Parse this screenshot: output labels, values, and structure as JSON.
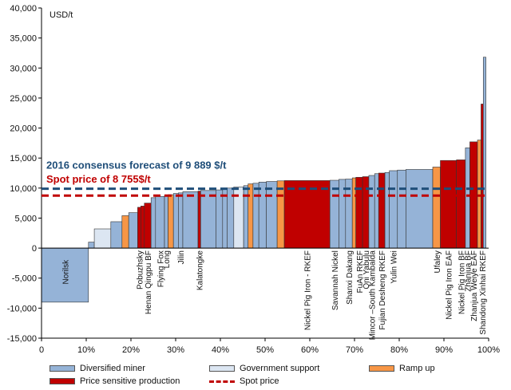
{
  "chart_data": {
    "type": "bar",
    "subtype": "cost-curve",
    "ylabel": "USD/t",
    "xlim": [
      0,
      100
    ],
    "ylim": [
      -15000,
      40000
    ],
    "x_ticks": [
      "0",
      "10%",
      "20%",
      "30%",
      "40%",
      "50%",
      "60%",
      "70%",
      "80%",
      "90%",
      "100%"
    ],
    "y_ticks": [
      "-15,000",
      "-10,000",
      "-5,000",
      "0",
      "5,000",
      "10,000",
      "15,000",
      "20,000",
      "25,000",
      "30,000",
      "35,000",
      "40,000"
    ],
    "grid": false,
    "legend_position": "bottom",
    "categories": {
      "diversified": {
        "label": "Diversified miner",
        "color": "#95b3d7"
      },
      "government": {
        "label": "Government support",
        "color": "#dce6f2"
      },
      "rampup": {
        "label": "Ramp up",
        "color": "#f79646"
      },
      "price": {
        "label": "Price sensitive production",
        "color": "#c00000"
      }
    },
    "bars": [
      {
        "x0": 0.0,
        "x1": 10.5,
        "value": -9000,
        "cat": "diversified",
        "label": "Norilsk"
      },
      {
        "x0": 10.5,
        "x1": 11.8,
        "value": 1000,
        "cat": "diversified"
      },
      {
        "x0": 11.8,
        "x1": 15.5,
        "value": 3200,
        "cat": "government"
      },
      {
        "x0": 15.5,
        "x1": 18.0,
        "value": 4400,
        "cat": "diversified"
      },
      {
        "x0": 18.0,
        "x1": 19.5,
        "value": 5400,
        "cat": "rampup"
      },
      {
        "x0": 19.5,
        "x1": 21.5,
        "value": 5900,
        "cat": "diversified"
      },
      {
        "x0": 21.5,
        "x1": 22.2,
        "value": 6800,
        "cat": "price",
        "label": "Pobuzhsky"
      },
      {
        "x0": 22.2,
        "x1": 23.0,
        "value": 7000,
        "cat": "price"
      },
      {
        "x0": 23.0,
        "x1": 24.5,
        "value": 7500,
        "cat": "price",
        "label": "Henan Qingpu BF"
      },
      {
        "x0": 24.5,
        "x1": 25.5,
        "value": 8400,
        "cat": "diversified"
      },
      {
        "x0": 25.5,
        "x1": 27.5,
        "value": 8600,
        "cat": "diversified",
        "label": "Flying Fox"
      },
      {
        "x0": 27.5,
        "x1": 28.3,
        "value": 8800,
        "cat": "diversified",
        "label": "Long"
      },
      {
        "x0": 28.3,
        "x1": 29.5,
        "value": 8900,
        "cat": "rampup"
      },
      {
        "x0": 29.5,
        "x1": 30.6,
        "value": 9100,
        "cat": "diversified"
      },
      {
        "x0": 30.6,
        "x1": 31.6,
        "value": 9200,
        "cat": "diversified",
        "label": "Jilin"
      },
      {
        "x0": 31.6,
        "x1": 35.0,
        "value": 9400,
        "cat": "diversified"
      },
      {
        "x0": 35.0,
        "x1": 35.6,
        "value": 9500,
        "cat": "price",
        "label": "Kalatongke"
      },
      {
        "x0": 35.6,
        "x1": 39.0,
        "value": 9600,
        "cat": "diversified"
      },
      {
        "x0": 39.0,
        "x1": 40.5,
        "value": 9700,
        "cat": "diversified"
      },
      {
        "x0": 40.5,
        "x1": 41.5,
        "value": 9850,
        "cat": "diversified"
      },
      {
        "x0": 41.5,
        "x1": 43.0,
        "value": 10000,
        "cat": "diversified"
      },
      {
        "x0": 43.0,
        "x1": 45.2,
        "value": 10200,
        "cat": "government"
      },
      {
        "x0": 45.2,
        "x1": 46.2,
        "value": 10400,
        "cat": "diversified"
      },
      {
        "x0": 46.2,
        "x1": 47.3,
        "value": 10700,
        "cat": "rampup"
      },
      {
        "x0": 47.3,
        "x1": 48.6,
        "value": 10800,
        "cat": "diversified"
      },
      {
        "x0": 48.6,
        "x1": 50.3,
        "value": 11000,
        "cat": "diversified"
      },
      {
        "x0": 50.3,
        "x1": 52.7,
        "value": 11100,
        "cat": "diversified"
      },
      {
        "x0": 52.7,
        "x1": 54.3,
        "value": 11200,
        "cat": "rampup"
      },
      {
        "x0": 54.3,
        "x1": 64.5,
        "value": 11250,
        "cat": "price",
        "label": "Nickel Pig Iron - RKEF"
      },
      {
        "x0": 64.5,
        "x1": 66.5,
        "value": 11300,
        "cat": "diversified",
        "label": "Savannah Nickel"
      },
      {
        "x0": 66.5,
        "x1": 68.0,
        "value": 11450,
        "cat": "diversified"
      },
      {
        "x0": 68.0,
        "x1": 69.5,
        "value": 11500,
        "cat": "diversified",
        "label": "Shanxi Dakang"
      },
      {
        "x0": 69.5,
        "x1": 70.3,
        "value": 11700,
        "cat": "rampup"
      },
      {
        "x0": 70.3,
        "x1": 71.8,
        "value": 11800,
        "cat": "price",
        "label": "FuAn RKEF"
      },
      {
        "x0": 71.8,
        "x1": 73.2,
        "value": 11900,
        "cat": "price",
        "label": "Qni Yabulu"
      },
      {
        "x0": 73.2,
        "x1": 74.5,
        "value": 12100,
        "cat": "diversified",
        "label": "Mincor –South Kambalda"
      },
      {
        "x0": 74.5,
        "x1": 75.4,
        "value": 12400,
        "cat": "diversified"
      },
      {
        "x0": 75.4,
        "x1": 76.8,
        "value": 12500,
        "cat": "price",
        "label": "Fujian Desheng RKEF"
      },
      {
        "x0": 76.8,
        "x1": 77.8,
        "value": 12600,
        "cat": "diversified"
      },
      {
        "x0": 77.8,
        "x1": 79.6,
        "value": 12900,
        "cat": "diversified",
        "label": "Yulin Wei"
      },
      {
        "x0": 79.6,
        "x1": 81.5,
        "value": 13000,
        "cat": "diversified"
      },
      {
        "x0": 81.5,
        "x1": 87.5,
        "value": 13100,
        "cat": "diversified"
      },
      {
        "x0": 87.5,
        "x1": 89.2,
        "value": 13500,
        "cat": "rampup",
        "label": "Ufaley"
      },
      {
        "x0": 89.2,
        "x1": 92.8,
        "value": 14600,
        "cat": "price",
        "label": "Nickel Pig Iron EAF"
      },
      {
        "x0": 92.8,
        "x1": 94.8,
        "value": 14700,
        "cat": "price",
        "label": "Nickel Pig Iron BF"
      },
      {
        "x0": 94.8,
        "x1": 95.8,
        "value": 16700,
        "cat": "diversified",
        "label": "Zhanjua BF"
      },
      {
        "x0": 95.8,
        "x1": 97.5,
        "value": 17700,
        "cat": "price",
        "label": "Zhanjua Weiye EAF"
      },
      {
        "x0": 97.5,
        "x1": 98.3,
        "value": 18000,
        "cat": "rampup"
      },
      {
        "x0": 98.3,
        "x1": 98.8,
        "value": 24000,
        "cat": "price",
        "label": "Shandong Xinhai RKEF"
      },
      {
        "x0": 98.8,
        "x1": 99.4,
        "value": 31800,
        "cat": "diversified"
      }
    ],
    "reference_lines": [
      {
        "name": "consensus",
        "value": 9889,
        "label": "2016 consensus forecast of 9 889 $/t",
        "color": "#1f4e79"
      },
      {
        "name": "spot",
        "value": 8755,
        "label": "Spot price of 8 755$/t",
        "color": "#c00000"
      }
    ],
    "legend": [
      {
        "label": "Diversified miner",
        "kind": "box",
        "color": "#95b3d7"
      },
      {
        "label": "Government support",
        "kind": "box",
        "color": "#dce6f2"
      },
      {
        "label": "Ramp up",
        "kind": "box",
        "color": "#f79646"
      },
      {
        "label": "Price sensitive production",
        "kind": "box",
        "color": "#c00000"
      },
      {
        "label": "Spot price",
        "kind": "dash",
        "color": "#c00000"
      }
    ]
  }
}
